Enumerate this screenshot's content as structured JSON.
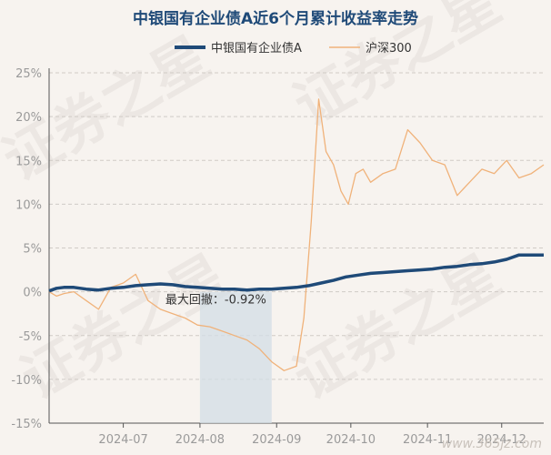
{
  "watermark": {
    "text": "证券之星",
    "corner": "www.365jz.com"
  },
  "chart_data": {
    "type": "line",
    "title": "中银国有企业债A近6个月累计收益率走势",
    "xlabel": "",
    "ylabel": "",
    "ylim": [
      -15,
      25
    ],
    "yticks": [
      "25%",
      "20%",
      "15%",
      "10%",
      "5%",
      "0%",
      "-5%",
      "-10%",
      "-15%"
    ],
    "ytick_values": [
      25,
      20,
      15,
      10,
      5,
      0,
      -5,
      -10,
      -15
    ],
    "xticks": [
      "2024-07",
      "2024-08",
      "2024-09",
      "2024-10",
      "2024-11",
      "2024-12"
    ],
    "xtick_positions": [
      30,
      61,
      92,
      122,
      153,
      183
    ],
    "grid": true,
    "legend": "top-center",
    "annotation": {
      "text": "最大回撤：-0.92%",
      "x_start": 61,
      "x_end": 90
    },
    "series": [
      {
        "name": "中银国有企业债A",
        "color": "#1f4a78",
        "x": [
          0,
          3,
          6,
          10,
          15,
          20,
          25,
          30,
          35,
          40,
          45,
          50,
          55,
          60,
          65,
          70,
          75,
          80,
          85,
          90,
          95,
          100,
          105,
          110,
          115,
          120,
          125,
          130,
          135,
          140,
          145,
          150,
          155,
          160,
          165,
          170,
          175,
          180,
          185,
          190,
          195,
          200
        ],
        "y": [
          0.1,
          0.4,
          0.5,
          0.5,
          0.3,
          0.2,
          0.4,
          0.5,
          0.7,
          0.8,
          0.9,
          0.8,
          0.6,
          0.5,
          0.4,
          0.3,
          0.3,
          0.2,
          0.3,
          0.3,
          0.4,
          0.5,
          0.7,
          1.0,
          1.3,
          1.7,
          1.9,
          2.1,
          2.2,
          2.3,
          2.4,
          2.5,
          2.6,
          2.8,
          2.9,
          3.1,
          3.2,
          3.4,
          3.7,
          4.2,
          4.2,
          4.2
        ]
      },
      {
        "name": "沪深300",
        "color": "#f0b27a",
        "x": [
          0,
          3,
          6,
          10,
          15,
          20,
          25,
          30,
          35,
          40,
          45,
          50,
          55,
          60,
          65,
          70,
          75,
          80,
          85,
          90,
          95,
          100,
          103,
          106,
          109,
          112,
          115,
          118,
          121,
          124,
          127,
          130,
          135,
          140,
          145,
          150,
          155,
          160,
          165,
          170,
          175,
          180,
          185,
          190,
          195,
          200
        ],
        "y": [
          0.0,
          -0.5,
          -0.2,
          0.0,
          -1.0,
          -2.0,
          0.5,
          1.0,
          2.0,
          -1.0,
          -2.0,
          -2.5,
          -3.0,
          -3.8,
          -4.0,
          -4.5,
          -5.0,
          -5.5,
          -6.5,
          -8.0,
          -9.0,
          -8.5,
          -3.0,
          8.0,
          22.0,
          16.0,
          14.5,
          11.5,
          10.0,
          13.5,
          14.0,
          12.5,
          13.5,
          14.0,
          18.5,
          17.0,
          15.0,
          14.5,
          11.0,
          12.5,
          14.0,
          13.5,
          15.0,
          13.0,
          13.5,
          14.5
        ]
      }
    ]
  }
}
